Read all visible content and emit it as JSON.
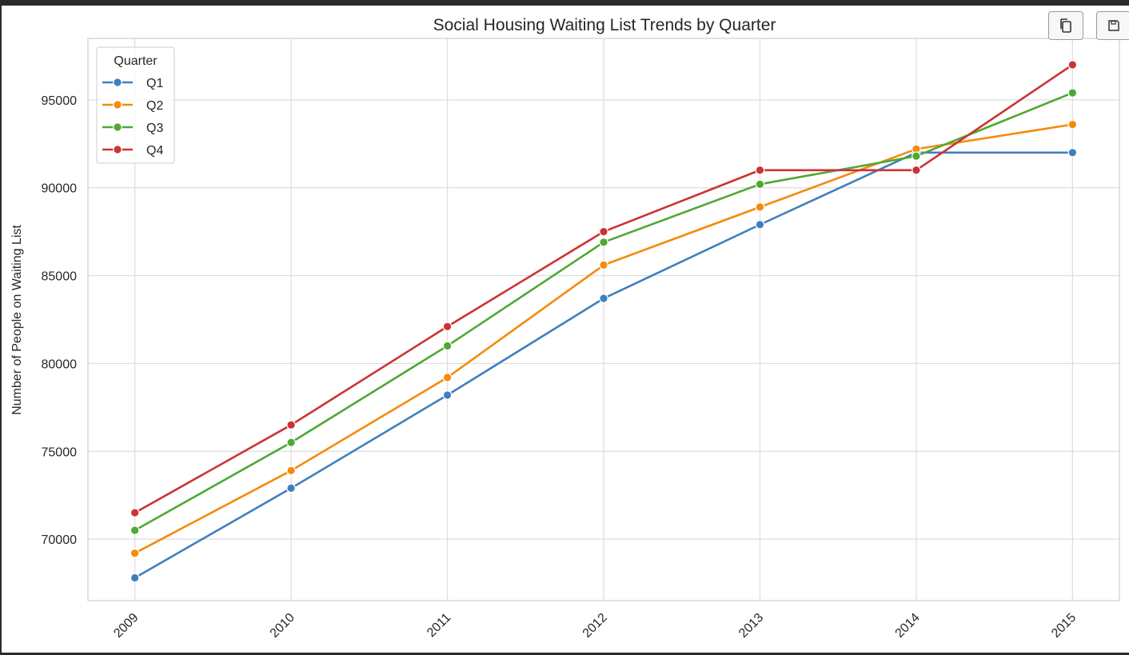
{
  "toolbar": {
    "copy_icon": "copy-icon",
    "save_icon": "save-icon"
  },
  "chart_data": {
    "type": "line",
    "title": "Social Housing Waiting List Trends by Quarter",
    "xlabel": "",
    "ylabel": "Number of People on Waiting List",
    "x": [
      2009,
      2010,
      2011,
      2012,
      2013,
      2014,
      2015
    ],
    "x_tick_labels": [
      "2009",
      "2010",
      "2011",
      "2012",
      "2013",
      "2014",
      "2015"
    ],
    "y_ticks": [
      70000,
      75000,
      80000,
      85000,
      90000,
      95000
    ],
    "y_tick_labels": [
      "70000",
      "75000",
      "80000",
      "85000",
      "90000",
      "95000"
    ],
    "xlim": [
      2008.7,
      2015.3
    ],
    "ylim": [
      66500,
      98500
    ],
    "grid": true,
    "legend": {
      "title": "Quarter",
      "placement": "top-left"
    },
    "series": [
      {
        "name": "Q1",
        "color": "#3f7fbf",
        "values": [
          67800,
          72900,
          78200,
          83700,
          87900,
          92000,
          92000
        ]
      },
      {
        "name": "Q2",
        "color": "#f58a0b",
        "values": [
          69200,
          73900,
          79200,
          85600,
          88900,
          92200,
          93600
        ]
      },
      {
        "name": "Q3",
        "color": "#4fa832",
        "values": [
          70500,
          75500,
          81000,
          86900,
          90200,
          91800,
          95400
        ]
      },
      {
        "name": "Q4",
        "color": "#cc3333",
        "values": [
          71500,
          76500,
          82100,
          87500,
          91000,
          91000,
          97000
        ]
      }
    ]
  }
}
